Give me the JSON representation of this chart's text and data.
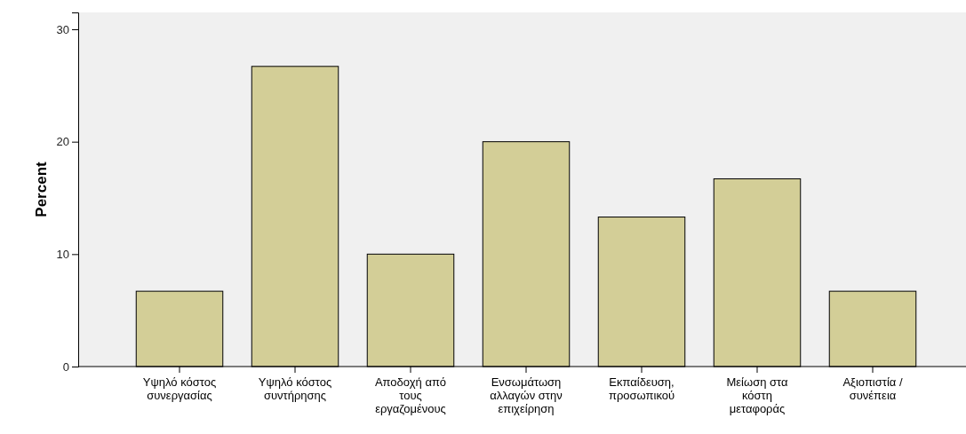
{
  "chart_data": {
    "type": "bar",
    "ylabel": "Percent",
    "categories": [
      "Υψηλό κόστος\nσυνεργασίας",
      "Υψηλό κόστος\nσυντήρησης",
      "Αποδοχή από\nτους\nεργαζομένους",
      "Ενσωμάτωση\nαλλαγών στην\nεπιχείρηση",
      "Εκπαίδευση,\nπροσωπικού",
      "Μείωση στα\nκόστη\nμεταφοράς",
      "Αξιοπιστία /\nσυνέπεια"
    ],
    "values": [
      6.7,
      26.7,
      10,
      20,
      13.3,
      16.7,
      6.7
    ],
    "color": "#d3ce97",
    "ylim": [
      0,
      31.5
    ],
    "yticks": [
      0,
      10,
      20,
      30
    ],
    "grid": false
  }
}
